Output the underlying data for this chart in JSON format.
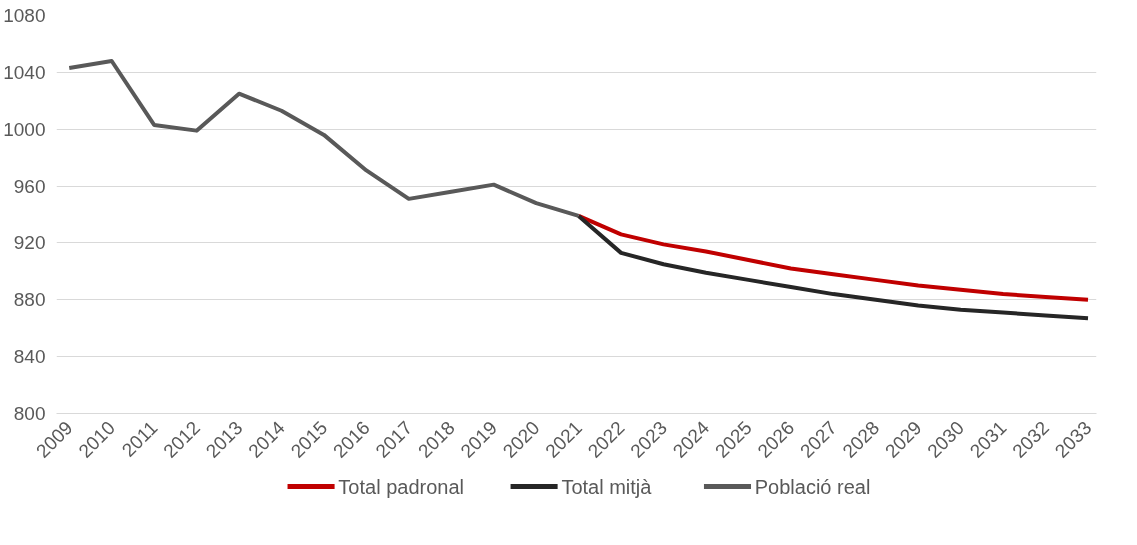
{
  "chart_data": {
    "type": "line",
    "categories": [
      "2009",
      "2010",
      "2011",
      "2012",
      "2013",
      "2014",
      "2015",
      "2016",
      "2017",
      "2018",
      "2019",
      "2020",
      "2021",
      "2022",
      "2023",
      "2024",
      "2025",
      "2026",
      "2027",
      "2028",
      "2029",
      "2030",
      "2031",
      "2032",
      "2033"
    ],
    "series": [
      {
        "name": "Total padronal",
        "color": "#c00000",
        "values": [
          null,
          null,
          null,
          null,
          null,
          null,
          null,
          null,
          null,
          null,
          null,
          null,
          939,
          926,
          919,
          914,
          908,
          902,
          898,
          894,
          890,
          887,
          884,
          882,
          880
        ]
      },
      {
        "name": "Total mitjà",
        "color": "#262626",
        "values": [
          null,
          null,
          null,
          null,
          null,
          null,
          null,
          null,
          null,
          null,
          null,
          null,
          939,
          913,
          905,
          899,
          894,
          889,
          884,
          880,
          876,
          873,
          871,
          869,
          867
        ]
      },
      {
        "name": "Població real",
        "color": "#595959",
        "values": [
          1043,
          1048,
          1003,
          999,
          1025,
          1013,
          996,
          971,
          951,
          956,
          961,
          948,
          939,
          null,
          null,
          null,
          null,
          null,
          null,
          null,
          null,
          null,
          null,
          null,
          null
        ]
      }
    ],
    "ylim": [
      800,
      1080
    ],
    "yticks": [
      800,
      840,
      880,
      920,
      960,
      1000,
      1040,
      1080
    ],
    "grid": "y",
    "legend": "bottom",
    "marker": "none",
    "line_style": "solid"
  }
}
